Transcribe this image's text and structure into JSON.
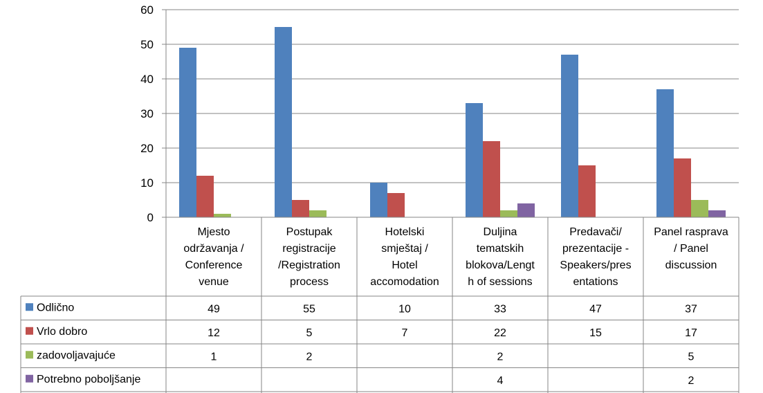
{
  "chart_data": {
    "type": "bar",
    "title": "",
    "xlabel": "",
    "ylabel": "",
    "ylim": [
      0,
      60
    ],
    "yticks": [
      0,
      10,
      20,
      30,
      40,
      50,
      60
    ],
    "grid": true,
    "legend": "data-table",
    "categories": [
      [
        "Mjesto",
        "održavanja /",
        "Conference",
        "venue"
      ],
      [
        "Postupak",
        "registracije",
        "/Registration",
        "process"
      ],
      [
        "Hotelski",
        "smještaj /",
        "Hotel",
        "accomodation"
      ],
      [
        "Duljina",
        "tematskih",
        "blokova/Lengt",
        "h of sessions"
      ],
      [
        "Predavači/",
        "prezentacije -",
        "Speakers/pres",
        "entations"
      ],
      [
        "Panel rasprava",
        "/ Panel",
        "discussion"
      ]
    ],
    "series": [
      {
        "name": "Odlično",
        "color": "#4F81BD",
        "values": [
          49,
          55,
          10,
          33,
          47,
          37
        ]
      },
      {
        "name": "Vrlo dobro",
        "color": "#C0504D",
        "values": [
          12,
          5,
          7,
          22,
          15,
          17
        ]
      },
      {
        "name": "zadovoljavajuće",
        "color": "#9BBB59",
        "values": [
          1,
          2,
          null,
          2,
          null,
          5
        ]
      },
      {
        "name": "Potrebno poboljšanje",
        "color": "#8064A2",
        "values": [
          null,
          null,
          null,
          4,
          null,
          2
        ]
      }
    ]
  }
}
